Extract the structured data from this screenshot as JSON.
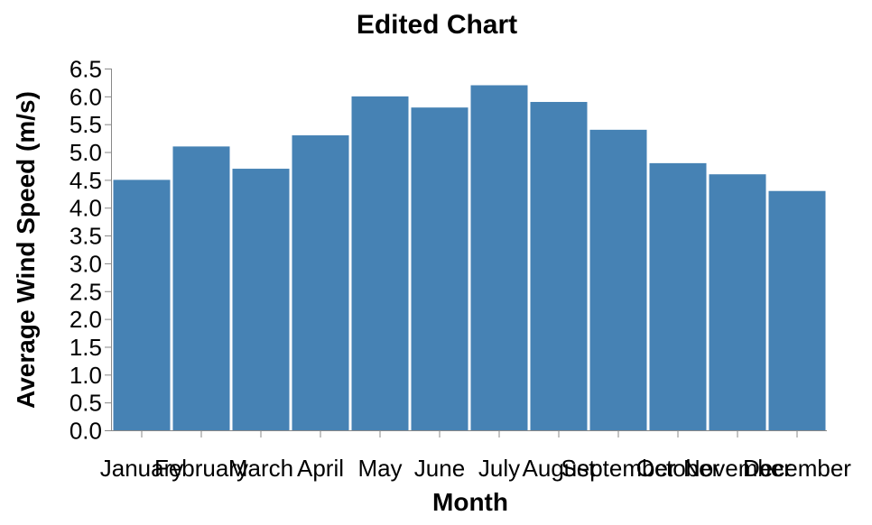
{
  "chart_data": {
    "type": "bar",
    "title": "Edited Chart",
    "xlabel": "Month",
    "ylabel": "Average Wind Speed (m/s)",
    "categories": [
      "January",
      "February",
      "March",
      "April",
      "May",
      "June",
      "July",
      "August",
      "September",
      "October",
      "November",
      "December"
    ],
    "values": [
      4.5,
      5.1,
      4.7,
      5.3,
      6.0,
      5.8,
      6.2,
      5.9,
      5.4,
      4.8,
      4.6,
      4.3
    ],
    "ylim": [
      0,
      6.5
    ],
    "yticks": [
      "0.0",
      "0.5",
      "1.0",
      "1.5",
      "2.0",
      "2.5",
      "3.0",
      "3.5",
      "4.0",
      "4.5",
      "5.0",
      "5.5",
      "6.0",
      "6.5"
    ],
    "grid": false,
    "bar_color": "#4682b4"
  }
}
